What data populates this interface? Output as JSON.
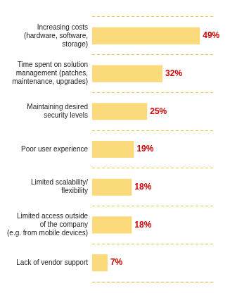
{
  "chart_data": {
    "type": "bar",
    "orientation": "horizontal",
    "categories": [
      "Lack of vendor support",
      "Limited access outside\nof the company\n(e.g. from mobile devices)",
      "Limited scalability/\nflexibility",
      "Poor user experience",
      "Maintaining desired\nsecurity levels",
      "Time spent on solution\nmanagement (patches,\nmaintenance, upgrades)",
      "Increasing costs\n(hardware, software,\nstorage)"
    ],
    "values": [
      7,
      18,
      18,
      19,
      25,
      32,
      49
    ],
    "value_labels": [
      "7%",
      "18%",
      "18%",
      "19%",
      "25%",
      "32%",
      "49%"
    ],
    "data_labels": true,
    "color": "#FADA7A",
    "xlim": [
      0,
      55
    ],
    "tick_labels": "y",
    "grid": true
  }
}
